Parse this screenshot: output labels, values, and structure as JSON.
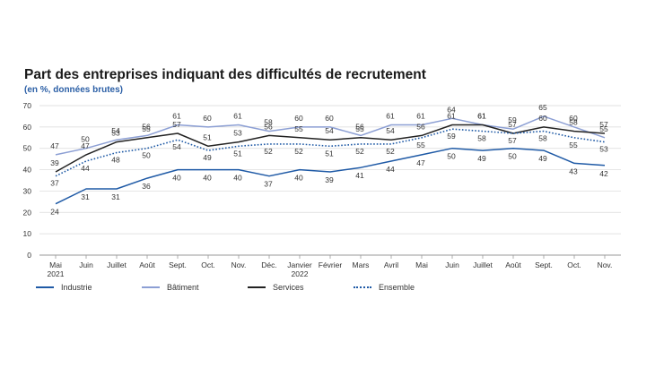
{
  "chart_data": {
    "type": "line",
    "title": "Part des entreprises indiquant des difficultés de recrutement",
    "subtitle": "(en %, données brutes)",
    "xlabel": "",
    "ylabel": "",
    "ylim": [
      0,
      70
    ],
    "yticks": [
      0,
      10,
      20,
      30,
      40,
      50,
      60,
      70
    ],
    "grid": true,
    "legend_position": "bottom",
    "categories": [
      [
        "Mai",
        "2021"
      ],
      [
        "Juin"
      ],
      [
        "Juillet"
      ],
      [
        "Août"
      ],
      [
        "Sept."
      ],
      [
        "Oct."
      ],
      [
        "Nov."
      ],
      [
        "Déc."
      ],
      [
        "Janvier",
        "2022"
      ],
      [
        "Février"
      ],
      [
        "Mars"
      ],
      [
        "Avril"
      ],
      [
        "Mai"
      ],
      [
        "Juin"
      ],
      [
        "Juillet"
      ],
      [
        "Août"
      ],
      [
        "Sept."
      ],
      [
        "Oct."
      ],
      [
        "Nov."
      ]
    ],
    "series": [
      {
        "name": "Industrie",
        "color": "#1f5aa6",
        "dash": "solid",
        "values": [
          24,
          31,
          31,
          36,
          40,
          40,
          40,
          37,
          40,
          39,
          41,
          44,
          47,
          50,
          49,
          50,
          49,
          43,
          42
        ]
      },
      {
        "name": "Bâtiment",
        "color": "#8c9fd4",
        "dash": "solid",
        "values": [
          47,
          50,
          54,
          56,
          61,
          60,
          61,
          58,
          60,
          60,
          56,
          61,
          61,
          64,
          61,
          59,
          65,
          60,
          55
        ]
      },
      {
        "name": "Services",
        "color": "#222222",
        "dash": "solid",
        "values": [
          39,
          47,
          53,
          55,
          57,
          51,
          53,
          56,
          55,
          54,
          55,
          54,
          56,
          61,
          61,
          57,
          60,
          58,
          57
        ]
      },
      {
        "name": "Ensemble",
        "color": "#1f5aa6",
        "dash": "dotted",
        "values": [
          37,
          44,
          48,
          50,
          54,
          49,
          51,
          52,
          52,
          51,
          52,
          52,
          55,
          59,
          58,
          57,
          58,
          55,
          53
        ]
      }
    ]
  }
}
